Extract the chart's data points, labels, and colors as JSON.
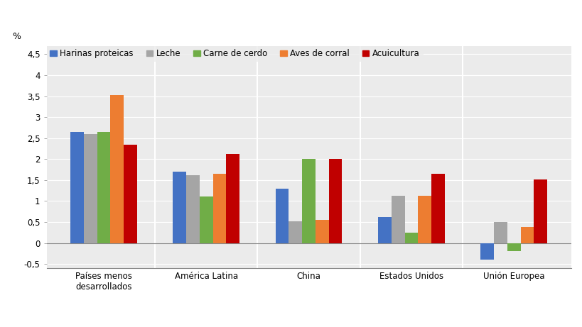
{
  "categories": [
    "Países menos\ndesarrollados",
    "América Latina",
    "China",
    "Estados Unidos",
    "Unión Europea"
  ],
  "series": {
    "Harinas proteicas": [
      2.65,
      1.7,
      1.3,
      0.62,
      -0.4
    ],
    "Leche": [
      2.6,
      1.62,
      0.52,
      1.12,
      0.5
    ],
    "Carne de cerdo": [
      2.65,
      1.1,
      2.0,
      0.25,
      -0.2
    ],
    "Aves de corral": [
      3.52,
      1.65,
      0.55,
      1.12,
      0.38
    ],
    "Acuicultura": [
      2.35,
      2.13,
      2.0,
      1.65,
      1.52
    ]
  },
  "colors": {
    "Harinas proteicas": "#4472C4",
    "Leche": "#A5A5A5",
    "Carne de cerdo": "#70AD47",
    "Aves de corral": "#ED7D31",
    "Acuicultura": "#C00000"
  },
  "ylim": [
    -0.6,
    4.7
  ],
  "yticks": [
    -0.5,
    0,
    0.5,
    1.0,
    1.5,
    2.0,
    2.5,
    3.0,
    3.5,
    4.0,
    4.5
  ],
  "ytick_labels": [
    "-0,5",
    "0",
    "0,5",
    "1",
    "1,5",
    "2",
    "2,5",
    "3",
    "3,5",
    "4",
    "4,5"
  ],
  "ylabel": "%",
  "figure_bg": "#FFFFFF",
  "plot_bg": "#EBEBEB",
  "legend_bg": "#EBEBEB",
  "bar_width": 0.13,
  "legend_fontsize": 8.5,
  "tick_fontsize": 8.5,
  "axis_label_fontsize": 9
}
